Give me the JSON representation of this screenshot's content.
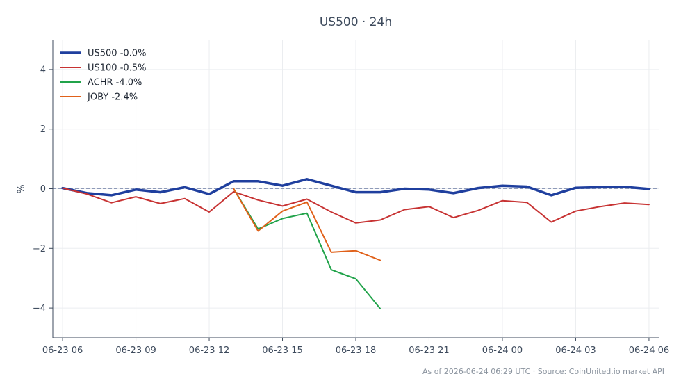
{
  "chart_data": {
    "type": "line",
    "title": "US500 · 24h",
    "ylabel": "%",
    "ylim": [
      -5,
      5
    ],
    "yticks": [
      -4,
      -2,
      0,
      2,
      4
    ],
    "ytick_labels": [
      "−4",
      "−2",
      "0",
      "2",
      "4"
    ],
    "xlim": [
      -0.4,
      24.4
    ],
    "xticks": [
      0,
      3,
      6,
      9,
      12,
      15,
      18,
      21,
      24
    ],
    "xtick_labels": [
      "06-23 06",
      "06-23 09",
      "06-23 12",
      "06-23 15",
      "06-23 18",
      "06-23 21",
      "06-24 00",
      "06-24 03",
      "06-24 06"
    ],
    "grid": true,
    "zero_line": true,
    "legend_position": "top-left",
    "series": [
      {
        "name": "US500 -0.0%",
        "color": "#1f3f9e",
        "width": 3.5,
        "points": [
          [
            0,
            0.02
          ],
          [
            1,
            -0.15
          ],
          [
            2,
            -0.22
          ],
          [
            3,
            -0.03
          ],
          [
            4,
            -0.12
          ],
          [
            5,
            0.05
          ],
          [
            6,
            -0.18
          ],
          [
            7,
            0.25
          ],
          [
            8,
            0.25
          ],
          [
            9,
            0.1
          ],
          [
            10,
            0.32
          ],
          [
            11,
            0.1
          ],
          [
            12,
            -0.12
          ],
          [
            13,
            -0.12
          ],
          [
            14,
            0.0
          ],
          [
            15,
            -0.03
          ],
          [
            16,
            -0.15
          ],
          [
            17,
            0.02
          ],
          [
            18,
            0.1
          ],
          [
            19,
            0.07
          ],
          [
            20,
            -0.22
          ],
          [
            21,
            0.03
          ],
          [
            22,
            0.05
          ],
          [
            23,
            0.06
          ],
          [
            24,
            -0.01
          ]
        ]
      },
      {
        "name": "US100 -0.5%",
        "color": "#c73232",
        "width": 2,
        "points": [
          [
            0,
            0.02
          ],
          [
            1,
            -0.18
          ],
          [
            2,
            -0.47
          ],
          [
            3,
            -0.27
          ],
          [
            4,
            -0.5
          ],
          [
            5,
            -0.33
          ],
          [
            6,
            -0.78
          ],
          [
            7,
            -0.1
          ],
          [
            8,
            -0.38
          ],
          [
            9,
            -0.58
          ],
          [
            10,
            -0.35
          ],
          [
            11,
            -0.78
          ],
          [
            12,
            -1.15
          ],
          [
            13,
            -1.05
          ],
          [
            14,
            -0.7
          ],
          [
            15,
            -0.6
          ],
          [
            16,
            -0.97
          ],
          [
            17,
            -0.73
          ],
          [
            18,
            -0.4
          ],
          [
            19,
            -0.46
          ],
          [
            20,
            -1.12
          ],
          [
            21,
            -0.75
          ],
          [
            22,
            -0.6
          ],
          [
            23,
            -0.48
          ],
          [
            24,
            -0.53
          ]
        ]
      },
      {
        "name": "ACHR -4.0%",
        "color": "#21a34a",
        "width": 2,
        "points": [
          [
            7,
            0.0
          ],
          [
            8,
            -1.35
          ],
          [
            9,
            -1.0
          ],
          [
            10,
            -0.82
          ],
          [
            11,
            -2.72
          ],
          [
            12,
            -3.02
          ],
          [
            13,
            -4.02
          ]
        ]
      },
      {
        "name": "JOBY -2.4%",
        "color": "#e0611a",
        "width": 2,
        "points": [
          [
            7,
            0.0
          ],
          [
            8,
            -1.42
          ],
          [
            9,
            -0.75
          ],
          [
            10,
            -0.45
          ],
          [
            11,
            -2.13
          ],
          [
            12,
            -2.08
          ],
          [
            13,
            -2.4
          ]
        ]
      }
    ]
  },
  "footer": "As of 2026-06-24 06:29 UTC · Source: CoinUnited.io market API"
}
